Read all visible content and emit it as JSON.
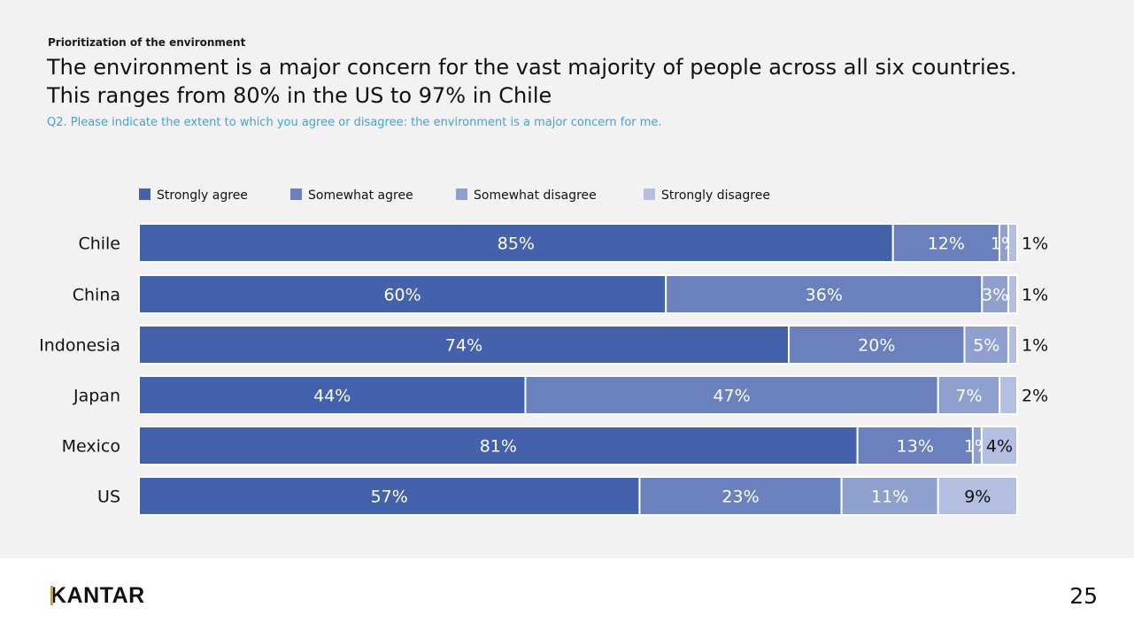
{
  "header": {
    "eyebrow": "Prioritization of the environment",
    "headline_line1": "The environment is a major concern for the vast majority of people across all six countries.",
    "headline_line2": "This ranges from 80% in the US to 97% in Chile",
    "question": "Q2. Please indicate the extent to which you agree or disagree: the environment is a major concern for me."
  },
  "colors": {
    "strongly_agree": "#4461ab",
    "somewhat_agree": "#6a81bd",
    "somewhat_disagree": "#8fa0cf",
    "strongly_disagree": "#b2bfe0"
  },
  "chart_data": {
    "type": "bar",
    "orientation": "horizontal",
    "stacked": true,
    "categories": [
      "Chile",
      "China",
      "Indonesia",
      "Japan",
      "Mexico",
      "US"
    ],
    "series": [
      {
        "name": "Strongly agree",
        "values": [
          85,
          60,
          74,
          44,
          81,
          57
        ],
        "labels": [
          "85%",
          "60%",
          "74%",
          "44%",
          "81%",
          "57%"
        ]
      },
      {
        "name": "Somewhat agree",
        "values": [
          12,
          36,
          20,
          47,
          13,
          23
        ],
        "labels": [
          "12%",
          "36%",
          "20%",
          "47%",
          "13%",
          "23%"
        ]
      },
      {
        "name": "Somewhat disagree",
        "values": [
          1,
          3,
          5,
          7,
          1,
          11
        ],
        "labels": [
          "1%",
          "3%",
          "5%",
          "7%",
          "1%",
          "11%"
        ]
      },
      {
        "name": "Strongly disagree",
        "values": [
          1,
          1,
          1,
          2,
          4,
          9
        ],
        "labels": [
          "1%",
          "1%",
          "1%",
          "2%",
          "4%",
          "9%"
        ]
      }
    ],
    "xlim": [
      0,
      100
    ],
    "grid": false,
    "legend": "top-left"
  },
  "footer": {
    "logo": "KANTAR",
    "page_number": "25"
  }
}
